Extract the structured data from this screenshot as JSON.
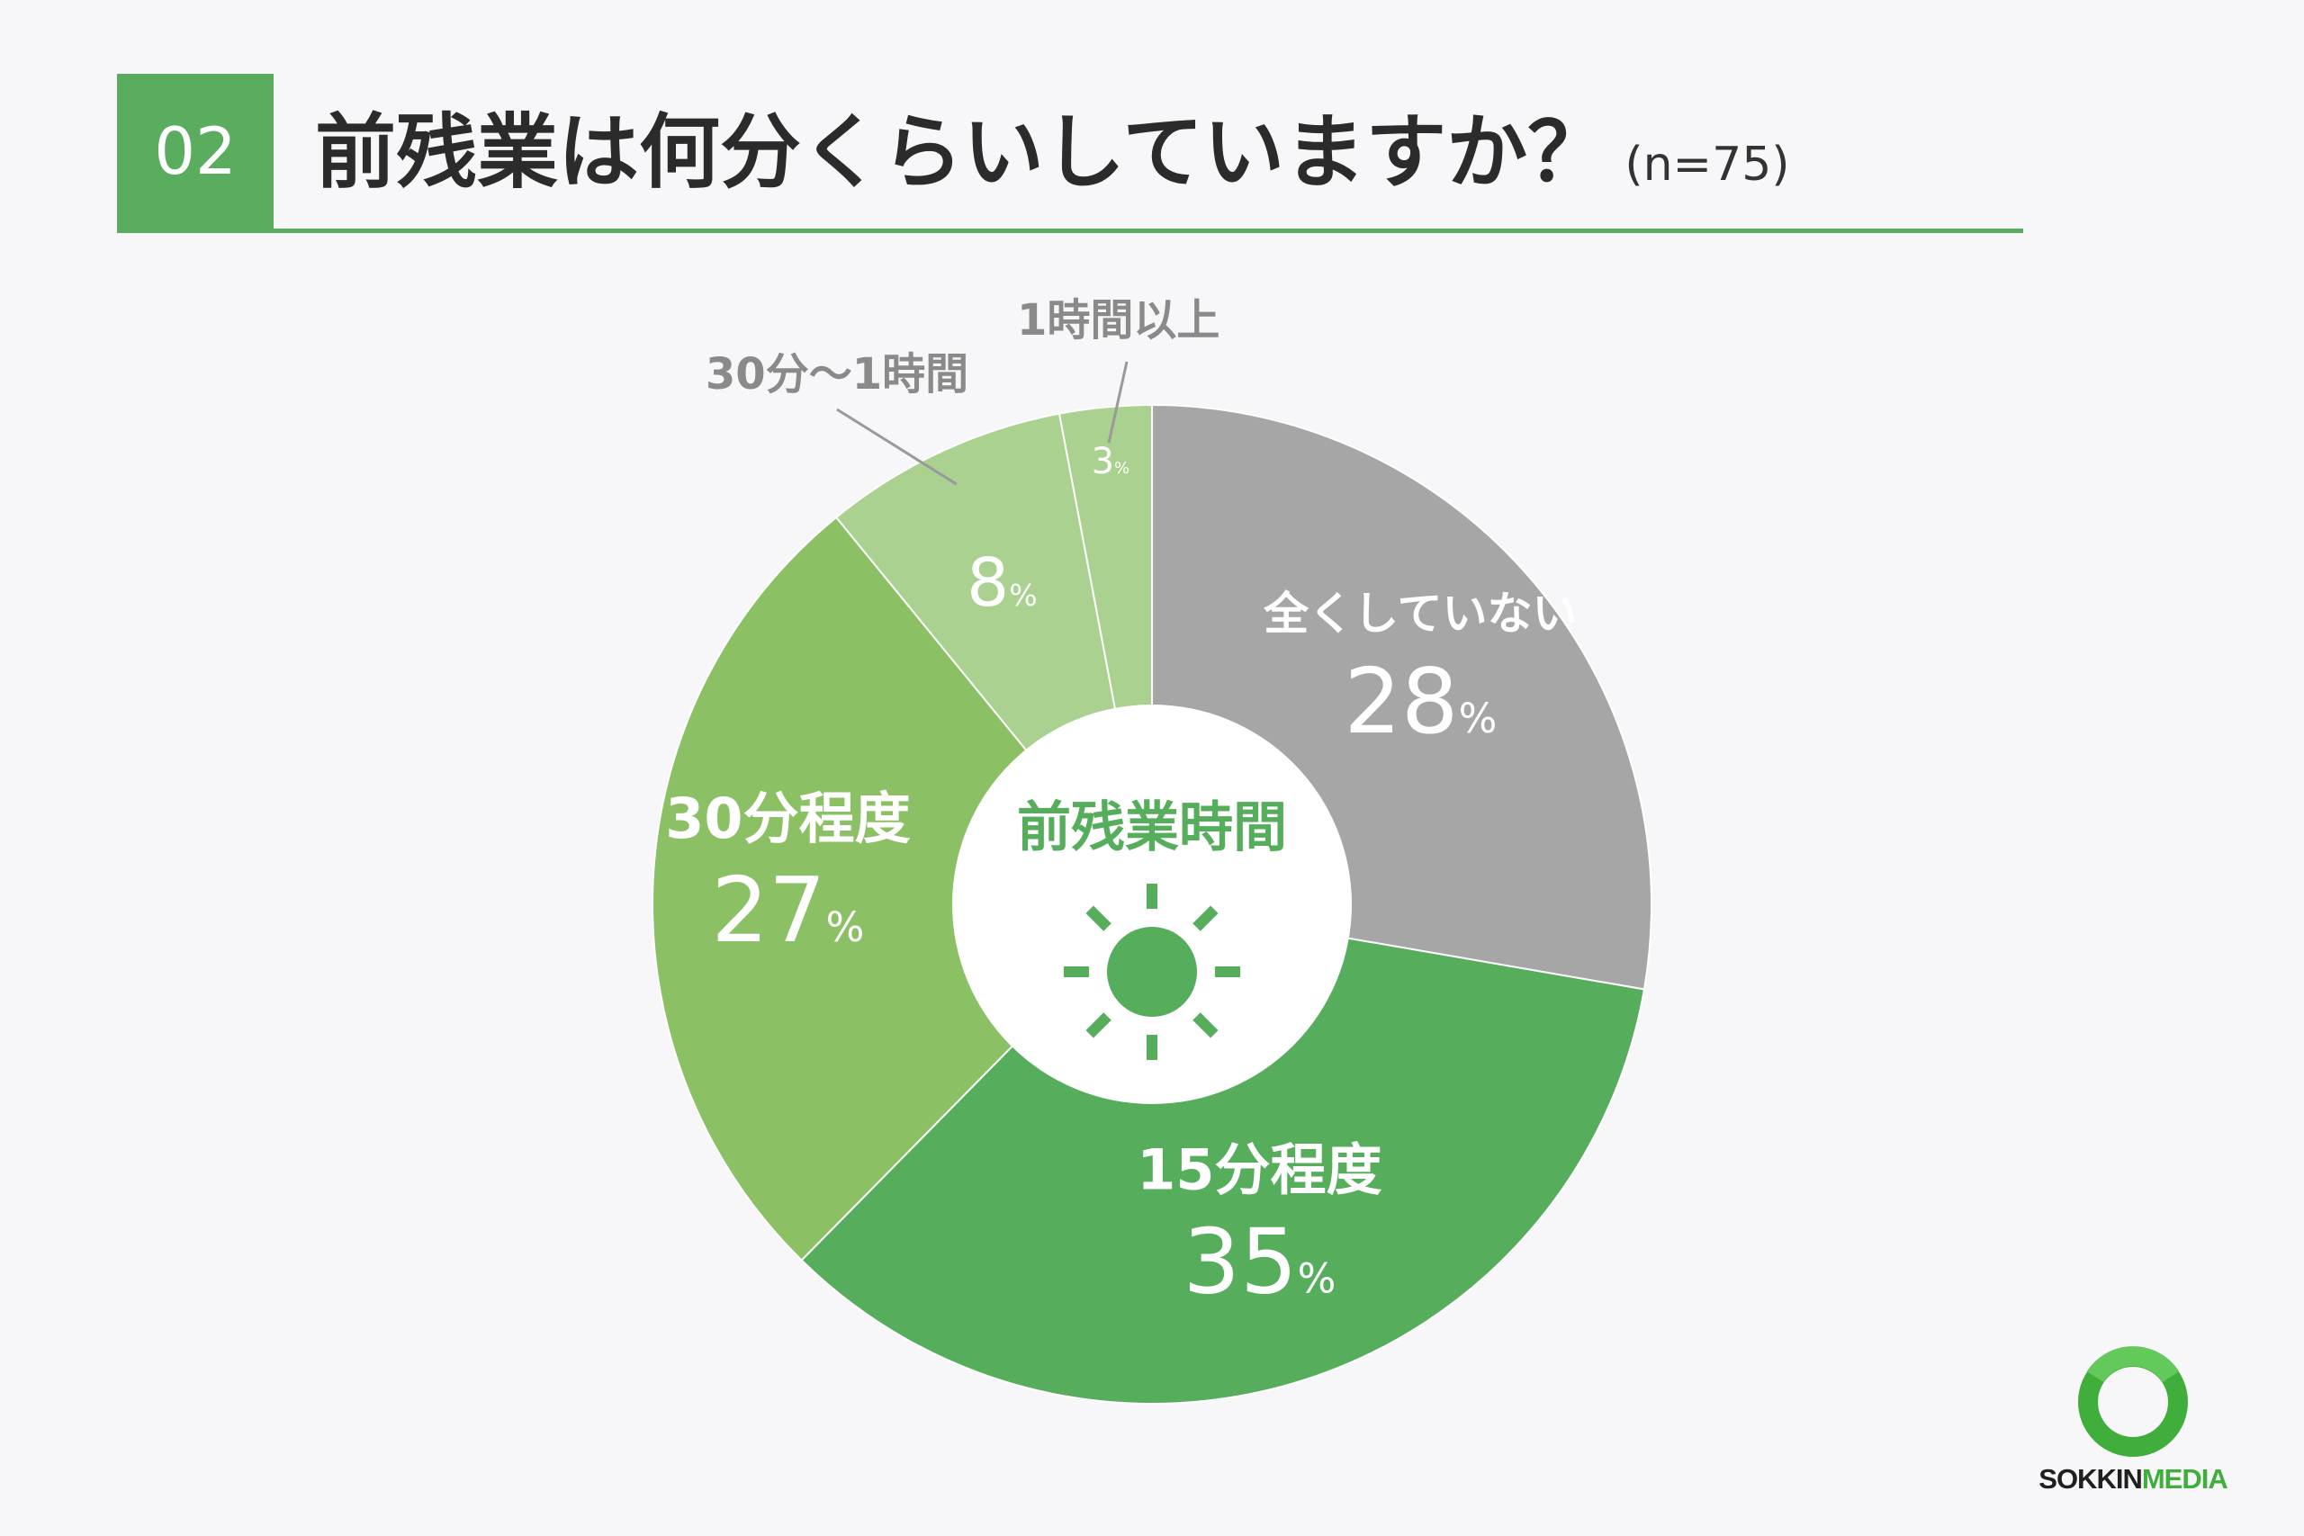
{
  "header": {
    "number": "02",
    "title": "前残業は何分くらいしていますか？",
    "sample": "(n=75)"
  },
  "chart_data": {
    "type": "pie",
    "center_label": "前残業時間",
    "unit": "%",
    "slices": [
      {
        "label": "全くしていない",
        "value": 28,
        "color": "#a6a6a6"
      },
      {
        "label": "15分程度",
        "value": 35,
        "color": "#56ad5c"
      },
      {
        "label": "30分程度",
        "value": 27,
        "color": "#8bc065"
      },
      {
        "label": "30分〜1時間",
        "value": 8,
        "color": "#aad18f"
      },
      {
        "label": "1時間以上",
        "value": 3,
        "color": "#aad18f"
      }
    ]
  },
  "logo": {
    "text_a": "SOKKIN",
    "text_b": "MEDIA",
    "color": "#3fae3a"
  },
  "icon": "sun-icon"
}
